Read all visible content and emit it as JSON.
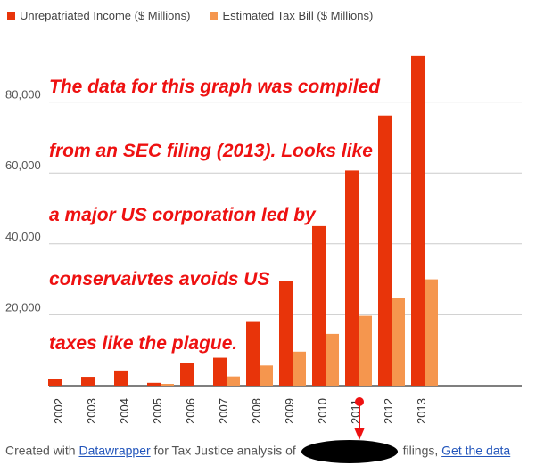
{
  "chart_data": {
    "type": "bar",
    "categories": [
      "2002",
      "2003",
      "2004",
      "2005",
      "2006",
      "2007",
      "2008",
      "2009",
      "2010",
      "2011",
      "2012",
      "2013"
    ],
    "series": [
      {
        "name": "Unrepatriated Income ($ Millions)",
        "color": "#e8340a",
        "values": [
          2000,
          2500,
          4300,
          800,
          6300,
          7900,
          18200,
          29600,
          45000,
          60700,
          76200,
          93000
        ]
      },
      {
        "name": "Estimated Tax Bill ($ Millions)",
        "color": "#f5964e",
        "values": [
          0,
          0,
          0,
          500,
          0,
          2600,
          5700,
          9600,
          14600,
          19700,
          24700,
          30000
        ]
      }
    ],
    "yticks": [
      20000,
      40000,
      60000,
      80000
    ],
    "ytick_labels": [
      "20,000",
      "40,000",
      "60,000",
      "80,000"
    ],
    "ylim": [
      0,
      100000
    ],
    "xlabel": "",
    "ylabel": ""
  },
  "annotation": {
    "lines": [
      "The data for this graph was compiled",
      "from an SEC filing (2013). Looks like",
      "a major US corporation led by",
      "conservaivtes avoids US",
      "taxes like the plague."
    ]
  },
  "footer": {
    "prefix": "Created with",
    "link1": "Datawrapper",
    "middle": "for Tax Justice analysis of",
    "suffix": "filings,",
    "link2": "Get the data"
  }
}
